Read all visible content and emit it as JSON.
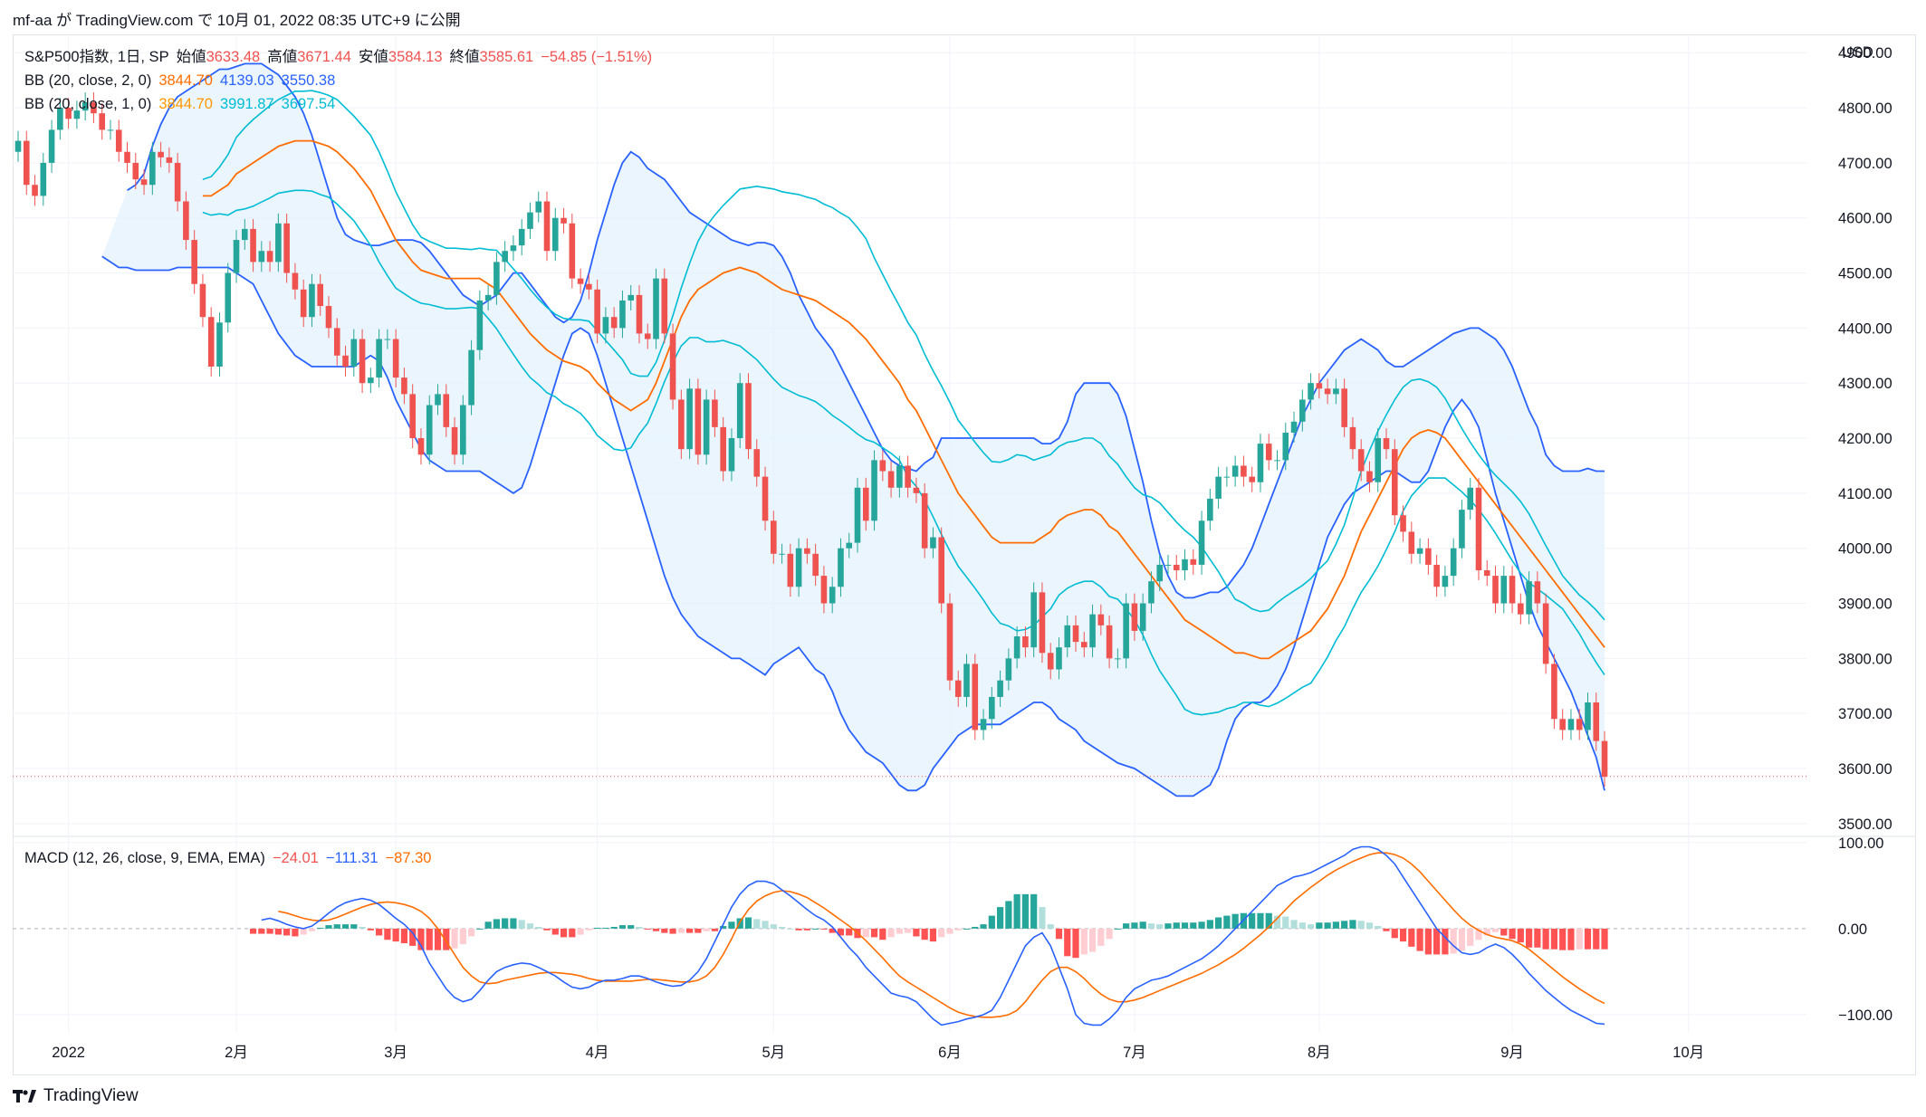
{
  "header": {
    "text": "mf-aa が TradingView.com で 10月 01, 2022 08:35 UTC+9 に公開"
  },
  "legend": {
    "symbol": "S&P500指数, 1日, SP",
    "open_label": "始値",
    "open": "3633.48",
    "high_label": "高値",
    "high": "3671.44",
    "low_label": "安値",
    "low": "3584.13",
    "close_label": "終値",
    "close": "3585.61",
    "change": "−54.85 (−1.51%)",
    "bb1_label": "BB (20, close, 2, 0)",
    "bb1_basis": "3844.70",
    "bb1_upper": "4139.03",
    "bb1_lower": "3550.38",
    "bb2_label": "BB (20, close, 1, 0)",
    "bb2_basis": "3844.70",
    "bb2_upper": "3991.87",
    "bb2_lower": "3697.54",
    "macd_label": "MACD (12, 26, close, 9, EMA, EMA)",
    "macd_hist": "−24.01",
    "macd_line": "−111.31",
    "macd_signal": "−87.30"
  },
  "currency": "USD",
  "brand": "TradingView",
  "colors": {
    "up": "#26a69a",
    "down": "#ef5350",
    "bb2_band": "#2962ff",
    "bb1_band": "#00bcd4",
    "basis": "#ff6d00",
    "bb_fill": "#e3f2fd",
    "macd_line": "#2962ff",
    "signal_line": "#ff6d00",
    "hist_up_strong": "#26a69a",
    "hist_up_weak": "#b2dfdb",
    "hist_down_strong": "#ff5252",
    "hist_down_weak": "#ffcdd2"
  },
  "chart_data": [
    {
      "type": "candlestick",
      "title": "S&P500指数, 1日, SP",
      "ylim": [
        3480,
        4930
      ],
      "y_ticks": [
        "3500.00",
        "3600.00",
        "3700.00",
        "3800.00",
        "3900.00",
        "4000.00",
        "4100.00",
        "4200.00",
        "4300.00",
        "4400.00",
        "4500.00",
        "4600.00",
        "4700.00",
        "4800.00",
        "4900.00"
      ],
      "x_ticks": [
        "2022",
        "2月",
        "3月",
        "4月",
        "5月",
        "6月",
        "7月",
        "8月",
        "9月",
        "10月"
      ],
      "x_tick_days": [
        6,
        26,
        45,
        69,
        90,
        111,
        133,
        155,
        178,
        199
      ],
      "last_close": 3585.61,
      "closes": [
        4740,
        4660,
        4640,
        4700,
        4760,
        4800,
        4780,
        4795,
        4810,
        4790,
        4760,
        4760,
        4720,
        4700,
        4670,
        4660,
        4720,
        4710,
        4700,
        4630,
        4560,
        4480,
        4420,
        4330,
        4410,
        4500,
        4560,
        4580,
        4520,
        4540,
        4520,
        4590,
        4500,
        4470,
        4420,
        4480,
        4440,
        4400,
        4350,
        4330,
        4380,
        4300,
        4310,
        4380,
        4380,
        4310,
        4280,
        4200,
        4170,
        4260,
        4280,
        4220,
        4170,
        4260,
        4360,
        4450,
        4460,
        4520,
        4540,
        4550,
        4580,
        4610,
        4630,
        4540,
        4600,
        4590,
        4490,
        4480,
        4470,
        4390,
        4420,
        4400,
        4450,
        4460,
        4390,
        4380,
        4490,
        4390,
        4270,
        4180,
        4290,
        4170,
        4270,
        4220,
        4140,
        4200,
        4300,
        4180,
        4130,
        4050,
        3990,
        3990,
        3930,
        4000,
        3990,
        3950,
        3900,
        3930,
        4000,
        4010,
        4110,
        4050,
        4160,
        4140,
        4110,
        4150,
        4110,
        4100,
        4000,
        4020,
        3900,
        3760,
        3730,
        3790,
        3670,
        3690,
        3730,
        3760,
        3800,
        3840,
        3820,
        3920,
        3810,
        3780,
        3820,
        3860,
        3830,
        3820,
        3880,
        3860,
        3800,
        3800,
        3900,
        3850,
        3900,
        3940,
        3970,
        3970,
        3960,
        3980,
        3970,
        4050,
        4090,
        4130,
        4130,
        4150,
        4130,
        4120,
        4190,
        4160,
        4160,
        4210,
        4230,
        4270,
        4300,
        4290,
        4280,
        4290,
        4220,
        4180,
        4140,
        4120,
        4200,
        4180,
        4060,
        4030,
        3990,
        4000,
        3970,
        3930,
        3950,
        4000,
        4070,
        4110,
        3960,
        3950,
        3900,
        3950,
        3900,
        3880,
        3940,
        3900,
        3790,
        3690,
        3670,
        3690,
        3670,
        3720,
        3650,
        3585
      ],
      "bb2_upper": [
        4650,
        4660,
        4680,
        4730,
        4770,
        4800,
        4820,
        4830,
        4840,
        4850,
        4860,
        4870,
        4870,
        4875,
        4880,
        4880,
        4880,
        4870,
        4860,
        4840,
        4820,
        4790,
        4750,
        4700,
        4650,
        4600,
        4570,
        4560,
        4555,
        4550,
        4550,
        4555,
        4560,
        4560,
        4560,
        4555,
        4540,
        4520,
        4500,
        4480,
        4460,
        4450,
        4440,
        4450,
        4460,
        4480,
        4500,
        4500,
        4480,
        4460,
        4440,
        4420,
        4410,
        4420,
        4450,
        4500,
        4560,
        4610,
        4660,
        4700,
        4720,
        4710,
        4690,
        4680,
        4670,
        4650,
        4630,
        4610,
        4600,
        4590,
        4580,
        4570,
        4560,
        4555,
        4550,
        4555,
        4555,
        4550,
        4530,
        4500,
        4460,
        4430,
        4400,
        4380,
        4360,
        4330,
        4300,
        4270,
        4240,
        4210,
        4180,
        4160,
        4150,
        4145,
        4140,
        4155,
        4165,
        4200,
        4200,
        4200,
        4200,
        4200,
        4200,
        4200,
        4200,
        4200,
        4200,
        4200,
        4200,
        4190,
        4190,
        4200,
        4230,
        4280,
        4300,
        4300,
        4300,
        4300,
        4280,
        4240,
        4180,
        4120,
        4050,
        3990,
        3950,
        3920,
        3910,
        3910,
        3915,
        3920,
        3920,
        3930,
        3950,
        3970,
        4000,
        4040,
        4080,
        4120,
        4160,
        4200,
        4240,
        4270,
        4300,
        4320,
        4340,
        4360,
        4370,
        4380,
        4370,
        4360,
        4340,
        4330,
        4330,
        4340,
        4350,
        4360,
        4370,
        4380,
        4390,
        4395,
        4400,
        4400,
        4390,
        4380,
        4360,
        4330,
        4290,
        4250,
        4220,
        4170,
        4150,
        4140,
        4140,
        4140,
        4145,
        4140,
        4140
      ],
      "bb2_lower": [
        4530,
        4520,
        4510,
        4510,
        4505,
        4505,
        4505,
        4505,
        4505,
        4510,
        4510,
        4510,
        4510,
        4510,
        4510,
        4510,
        4500,
        4490,
        4480,
        4450,
        4420,
        4390,
        4370,
        4350,
        4340,
        4330,
        4330,
        4330,
        4330,
        4330,
        4330,
        4340,
        4350,
        4340,
        4310,
        4270,
        4240,
        4210,
        4180,
        4160,
        4150,
        4140,
        4140,
        4140,
        4140,
        4140,
        4130,
        4120,
        4110,
        4100,
        4110,
        4150,
        4200,
        4250,
        4300,
        4350,
        4390,
        4400,
        4390,
        4350,
        4300,
        4250,
        4200,
        4150,
        4100,
        4050,
        4000,
        3950,
        3910,
        3880,
        3860,
        3840,
        3830,
        3820,
        3810,
        3800,
        3800,
        3790,
        3780,
        3770,
        3790,
        3800,
        3810,
        3820,
        3800,
        3780,
        3770,
        3740,
        3700,
        3670,
        3650,
        3630,
        3620,
        3610,
        3590,
        3570,
        3560,
        3560,
        3570,
        3600,
        3620,
        3640,
        3660,
        3670,
        3680,
        3680,
        3680,
        3680,
        3690,
        3700,
        3710,
        3720,
        3720,
        3710,
        3690,
        3680,
        3670,
        3650,
        3640,
        3630,
        3620,
        3610,
        3605,
        3600,
        3590,
        3580,
        3570,
        3560,
        3550,
        3550,
        3550,
        3560,
        3570,
        3600,
        3650,
        3690,
        3710,
        3720,
        3720,
        3730,
        3750,
        3780,
        3820,
        3870,
        3920,
        3970,
        4020,
        4050,
        4080,
        4100,
        4110,
        4120,
        4130,
        4140,
        4140,
        4130,
        4120,
        4120,
        4140,
        4180,
        4220,
        4250,
        4270,
        4250,
        4220,
        4160,
        4100,
        4050,
        4000,
        3950,
        3900,
        3860,
        3830,
        3800,
        3770,
        3740,
        3700,
        3660,
        3620,
        3560
      ],
      "basis": [
        4640,
        4640,
        4650,
        4660,
        4680,
        4690,
        4700,
        4710,
        4720,
        4730,
        4735,
        4740,
        4740,
        4740,
        4735,
        4730,
        4720,
        4705,
        4690,
        4670,
        4650,
        4620,
        4590,
        4560,
        4540,
        4520,
        4505,
        4500,
        4495,
        4490,
        4490,
        4490,
        4490,
        4490,
        4480,
        4470,
        4450,
        4430,
        4410,
        4390,
        4375,
        4360,
        4350,
        4340,
        4335,
        4330,
        4320,
        4300,
        4285,
        4270,
        4260,
        4250,
        4260,
        4270,
        4300,
        4340,
        4380,
        4420,
        4450,
        4470,
        4480,
        4490,
        4500,
        4505,
        4510,
        4505,
        4500,
        4490,
        4480,
        4470,
        4465,
        4460,
        4455,
        4450,
        4440,
        4430,
        4420,
        4410,
        4395,
        4380,
        4360,
        4340,
        4320,
        4300,
        4270,
        4250,
        4220,
        4190,
        4160,
        4130,
        4100,
        4080,
        4060,
        4040,
        4020,
        4010,
        4010,
        4010,
        4010,
        4010,
        4020,
        4030,
        4050,
        4060,
        4065,
        4070,
        4070,
        4060,
        4040,
        4030,
        4010,
        3990,
        3970,
        3950,
        3930,
        3910,
        3890,
        3870,
        3860,
        3850,
        3840,
        3830,
        3820,
        3810,
        3810,
        3805,
        3800,
        3800,
        3810,
        3820,
        3830,
        3840,
        3850,
        3870,
        3890,
        3920,
        3950,
        3990,
        4030,
        4060,
        4090,
        4120,
        4150,
        4180,
        4200,
        4210,
        4215,
        4210,
        4200,
        4180,
        4160,
        4140,
        4120,
        4100,
        4080,
        4060,
        4040,
        4020,
        4000,
        3980,
        3960,
        3940,
        3920,
        3900,
        3880,
        3860,
        3840,
        3820
      ],
      "note": "bb2/basis arrays are shifted by the first 20 bars; scripts align them from the end"
    },
    {
      "type": "macd",
      "title": "MACD (12, 26, close, 9, EMA, EMA)",
      "ylim": [
        -120,
        105
      ],
      "y_ticks": [
        "100.00",
        "0.00",
        "−100.00"
      ],
      "macd": [
        10,
        12,
        9,
        5,
        2,
        0,
        3,
        10,
        18,
        25,
        30,
        33,
        35,
        33,
        28,
        20,
        12,
        5,
        -5,
        -20,
        -40,
        -55,
        -70,
        -80,
        -85,
        -82,
        -72,
        -60,
        -50,
        -45,
        -42,
        -40,
        -41,
        -45,
        -50,
        -55,
        -62,
        -68,
        -70,
        -68,
        -63,
        -60,
        -60,
        -58,
        -55,
        -55,
        -58,
        -62,
        -65,
        -67,
        -66,
        -60,
        -50,
        -35,
        -15,
        5,
        25,
        40,
        50,
        55,
        55,
        52,
        45,
        38,
        30,
        22,
        15,
        10,
        2,
        -10,
        -22,
        -32,
        -45,
        -55,
        -65,
        -75,
        -78,
        -80,
        -85,
        -95,
        -105,
        -112,
        -110,
        -108,
        -105,
        -103,
        -100,
        -95,
        -80,
        -60,
        -40,
        -20,
        -10,
        -5,
        -20,
        -45,
        -70,
        -100,
        -110,
        -112,
        -112,
        -105,
        -95,
        -80,
        -70,
        -65,
        -60,
        -58,
        -55,
        -50,
        -45,
        -40,
        -35,
        -28,
        -20,
        -10,
        0,
        10,
        20,
        30,
        40,
        50,
        55,
        60,
        62,
        65,
        70,
        75,
        80,
        85,
        92,
        95,
        95,
        92,
        85,
        75,
        60,
        45,
        30,
        15,
        0,
        -10,
        -20,
        -28,
        -30,
        -28,
        -22,
        -18,
        -22,
        -30,
        -40,
        -52,
        -62,
        -72,
        -80,
        -88,
        -95,
        -100,
        -105,
        -110,
        -111
      ],
      "signal": [
        20,
        18,
        15,
        12,
        10,
        9,
        10,
        13,
        17,
        21,
        25,
        28,
        30,
        31,
        30,
        28,
        25,
        20,
        12,
        0,
        -15,
        -30,
        -45,
        -55,
        -62,
        -64,
        -63,
        -60,
        -58,
        -56,
        -54,
        -52,
        -51,
        -51,
        -52,
        -53,
        -55,
        -58,
        -60,
        -61,
        -61,
        -61,
        -61,
        -60,
        -59,
        -59,
        -60,
        -61,
        -62,
        -62,
        -60,
        -55,
        -45,
        -30,
        -12,
        8,
        22,
        32,
        38,
        42,
        44,
        43,
        40,
        36,
        30,
        24,
        17,
        10,
        3,
        -5,
        -14,
        -24,
        -34,
        -45,
        -55,
        -62,
        -68,
        -74,
        -80,
        -86,
        -92,
        -97,
        -100,
        -102,
        -103,
        -103,
        -102,
        -100,
        -95,
        -85,
        -72,
        -60,
        -50,
        -45,
        -45,
        -50,
        -58,
        -68,
        -76,
        -82,
        -85,
        -85,
        -83,
        -80,
        -76,
        -72,
        -68,
        -64,
        -60,
        -56,
        -52,
        -47,
        -42,
        -36,
        -30,
        -23,
        -15,
        -7,
        2,
        12,
        22,
        32,
        40,
        48,
        55,
        62,
        68,
        73,
        78,
        82,
        86,
        88,
        88,
        86,
        82,
        75,
        66,
        55,
        44,
        33,
        22,
        12,
        4,
        -2,
        -7,
        -10,
        -12,
        -14,
        -18,
        -24,
        -32,
        -40,
        -48,
        -56,
        -63,
        -70,
        -76,
        -82,
        -87
      ],
      "histogram": [
        -6,
        -6,
        -6,
        -7,
        -8,
        -9,
        -7,
        -3,
        1,
        4,
        5,
        5,
        5,
        2,
        -2,
        -8,
        -13,
        -15,
        -17,
        -20,
        -25,
        -25,
        -25,
        -25,
        -23,
        -18,
        -9,
        0,
        8,
        11,
        12,
        12,
        10,
        6,
        2,
        -2,
        -7,
        -10,
        -10,
        -7,
        -2,
        1,
        1,
        2,
        4,
        4,
        2,
        -1,
        -3,
        -5,
        -6,
        -5,
        -5,
        -5,
        -3,
        -3,
        3,
        8,
        12,
        13,
        11,
        9,
        5,
        2,
        0,
        -2,
        -2,
        0,
        -1,
        -5,
        -8,
        -8,
        -11,
        -10,
        -10,
        -13,
        -10,
        -6,
        -5,
        -9,
        -13,
        -15,
        -10,
        -6,
        -2,
        0,
        2,
        5,
        15,
        25,
        32,
        40,
        40,
        40,
        25,
        5,
        -12,
        -32,
        -34,
        -30,
        -27,
        -20,
        -12,
        0,
        6,
        7,
        8,
        6,
        5,
        6,
        7,
        7,
        7,
        8,
        10,
        13,
        15,
        17,
        18,
        18,
        18,
        18,
        15,
        14,
        10,
        7,
        5,
        7,
        7,
        8,
        9,
        10,
        9,
        7,
        3,
        -3,
        -11,
        -15,
        -21,
        -26,
        -30,
        -30,
        -30,
        -29,
        -26,
        -20,
        -13,
        -8,
        -4,
        -8,
        -12,
        -16,
        -22,
        -22,
        -24,
        -24,
        -25,
        -25,
        -24,
        -24,
        -24,
        -24
      ]
    }
  ]
}
